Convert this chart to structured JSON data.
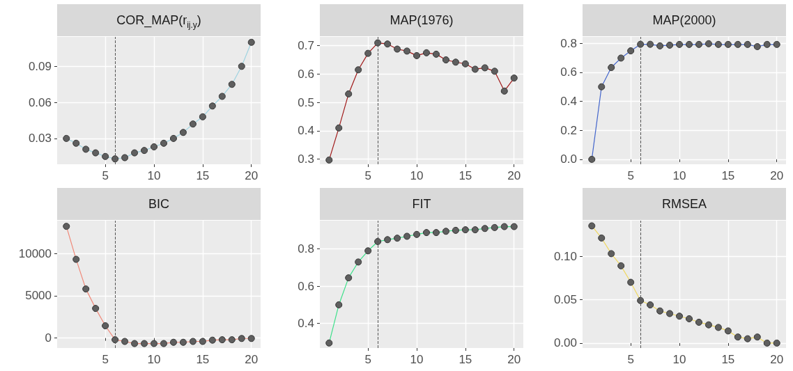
{
  "chart_data": [
    {
      "type": "line",
      "title": "COR_MAP(r$_{ij.y}$)",
      "x": [
        1,
        2,
        3,
        4,
        5,
        6,
        7,
        8,
        9,
        10,
        11,
        12,
        13,
        14,
        15,
        16,
        17,
        18,
        19,
        20
      ],
      "xlim": [
        0.05,
        20.95
      ],
      "xticks": [
        5,
        10,
        15,
        20
      ],
      "ylim": [
        0.0085,
        0.1145
      ],
      "yticks": [
        0.03,
        0.06,
        0.09
      ],
      "grid": true,
      "marker": "circle",
      "line_style": "solid",
      "ref_lines": [
        {
          "axis": "x",
          "value": 6,
          "line_style": "dashed",
          "color": "#555555"
        }
      ],
      "series": [
        {
          "color": "#9fd3e0",
          "values": [
            0.03,
            0.026,
            0.021,
            0.018,
            0.015,
            0.013,
            0.014,
            0.018,
            0.02,
            0.023,
            0.026,
            0.03,
            0.035,
            0.042,
            0.048,
            0.057,
            0.065,
            0.075,
            0.09,
            0.11
          ]
        }
      ]
    },
    {
      "type": "line",
      "title": "MAP(1976)",
      "x": [
        1,
        2,
        3,
        4,
        5,
        6,
        7,
        8,
        9,
        10,
        11,
        12,
        13,
        14,
        15,
        16,
        17,
        18,
        19,
        20
      ],
      "xlim": [
        0.05,
        20.95
      ],
      "xticks": [
        5,
        10,
        15,
        20
      ],
      "ylim": [
        0.282,
        0.731
      ],
      "yticks": [
        0.3,
        0.4,
        0.5,
        0.6,
        0.7
      ],
      "grid": true,
      "marker": "circle",
      "line_style": "solid",
      "ref_lines": [
        {
          "axis": "x",
          "value": 6,
          "line_style": "dashed",
          "color": "#555555"
        }
      ],
      "series": [
        {
          "color": "#a01818",
          "values": [
            0.297,
            0.41,
            0.53,
            0.615,
            0.673,
            0.71,
            0.706,
            0.688,
            0.681,
            0.665,
            0.675,
            0.67,
            0.65,
            0.642,
            0.636,
            0.617,
            0.622,
            0.61,
            0.54,
            0.586
          ]
        }
      ]
    },
    {
      "type": "line",
      "title": "MAP(2000)",
      "x": [
        1,
        2,
        3,
        4,
        5,
        6,
        7,
        8,
        9,
        10,
        11,
        12,
        13,
        14,
        15,
        16,
        17,
        18,
        19,
        20
      ],
      "xlim": [
        0.05,
        20.95
      ],
      "xticks": [
        5,
        10,
        15,
        20
      ],
      "ylim": [
        -0.034,
        0.844
      ],
      "yticks": [
        {
          "value": 0,
          "label": "0.0"
        },
        0.2,
        0.4,
        0.6,
        0.8
      ],
      "grid": true,
      "marker": "circle",
      "line_style": "solid",
      "ref_lines": [
        {
          "axis": "x",
          "value": 6,
          "line_style": "dashed",
          "color": "#555555"
        }
      ],
      "series": [
        {
          "color": "#4466cc",
          "values": [
            0,
            0.5,
            0.633,
            0.698,
            0.748,
            0.793,
            0.793,
            0.782,
            0.787,
            0.792,
            0.792,
            0.792,
            0.797,
            0.792,
            0.792,
            0.792,
            0.792,
            0.777,
            0.792,
            0.792
          ]
        }
      ]
    },
    {
      "type": "line",
      "title": "BIC",
      "x": [
        1,
        2,
        3,
        4,
        5,
        6,
        7,
        8,
        9,
        10,
        11,
        12,
        13,
        14,
        15,
        16,
        17,
        18,
        19,
        20
      ],
      "xlim": [
        0.05,
        20.95
      ],
      "xticks": [
        5,
        10,
        15,
        20
      ],
      "ylim": [
        -1180,
        13870
      ],
      "yticks": [
        0,
        5000,
        10000
      ],
      "grid": true,
      "marker": "circle",
      "line_style": "solid",
      "ref_lines": [
        {
          "axis": "x",
          "value": 6,
          "line_style": "dashed",
          "color": "#555555"
        }
      ],
      "series": [
        {
          "color": "#f08878",
          "values": [
            13200,
            9300,
            5800,
            3500,
            1450,
            -200,
            -400,
            -650,
            -650,
            -650,
            -650,
            -500,
            -500,
            -400,
            -400,
            -250,
            -200,
            -200,
            -50,
            -50
          ]
        }
      ]
    },
    {
      "type": "line",
      "title": "FIT",
      "x": [
        1,
        2,
        3,
        4,
        5,
        6,
        7,
        8,
        9,
        10,
        11,
        12,
        13,
        14,
        15,
        16,
        17,
        18,
        19,
        20
      ],
      "xlim": [
        0.05,
        20.95
      ],
      "xticks": [
        5,
        10,
        15,
        20
      ],
      "ylim": [
        0.268,
        0.952
      ],
      "yticks": [
        0.4,
        0.6,
        0.8
      ],
      "grid": true,
      "marker": "circle",
      "line_style": "solid",
      "ref_lines": [
        {
          "axis": "x",
          "value": 6,
          "line_style": "dashed",
          "color": "#555555"
        }
      ],
      "series": [
        {
          "color": "#3de08a",
          "values": [
            0.295,
            0.5,
            0.645,
            0.73,
            0.79,
            0.84,
            0.85,
            0.858,
            0.868,
            0.878,
            0.888,
            0.888,
            0.895,
            0.9,
            0.903,
            0.903,
            0.91,
            0.915,
            0.92,
            0.92
          ]
        }
      ]
    },
    {
      "type": "line",
      "title": "RMSEA",
      "x": [
        1,
        2,
        3,
        4,
        5,
        6,
        7,
        8,
        9,
        10,
        11,
        12,
        13,
        14,
        15,
        16,
        17,
        18,
        19,
        20
      ],
      "xlim": [
        0.05,
        20.95
      ],
      "xticks": [
        5,
        10,
        15,
        20
      ],
      "ylim": [
        -0.0057,
        0.141
      ],
      "yticks": [
        {
          "value": 0,
          "label": "0.00"
        },
        {
          "value": 0.05,
          "label": "0.05"
        },
        {
          "value": 0.1,
          "label": "0.10"
        }
      ],
      "grid": true,
      "marker": "circle",
      "line_style": "solid",
      "ref_lines": [
        {
          "axis": "x",
          "value": 6,
          "line_style": "dashed",
          "color": "#555555"
        }
      ],
      "series": [
        {
          "color": "#f0d860",
          "values": [
            0.135,
            0.121,
            0.103,
            0.089,
            0.07,
            0.049,
            0.044,
            0.037,
            0.034,
            0.031,
            0.028,
            0.024,
            0.021,
            0.018,
            0.014,
            0.007,
            0.005,
            0.007,
            0.0,
            0.0
          ]
        }
      ]
    }
  ]
}
